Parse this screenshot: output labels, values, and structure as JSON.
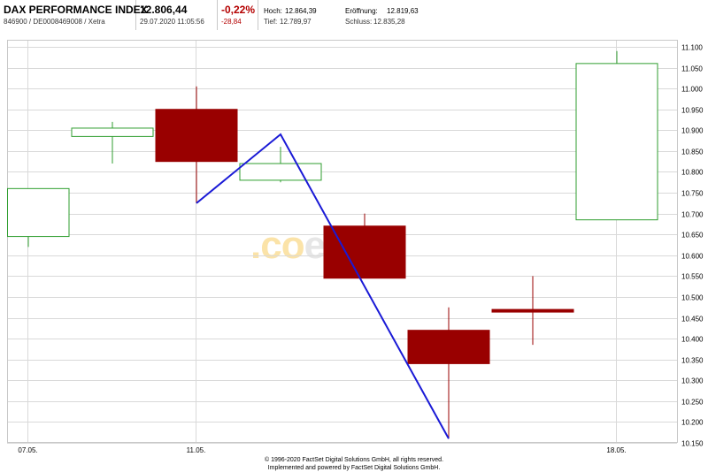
{
  "header": {
    "instrument_name": "DAX PERFORMANCE INDEX",
    "instrument_ids": "846900 / DE0008469008 / Xetra",
    "last_price": "12.806,44",
    "timestamp": "29.07.2020 11:05:56",
    "change_pct": "-0,22%",
    "change_abs": "-28,84",
    "high_label": "Hoch:",
    "high_value": "12.864,39",
    "open_label": "Eröffnung:",
    "open_value": "12.819,63",
    "low_label": "Tief:",
    "low_value": "12.789,97",
    "close_label": "Schluss:",
    "close_value": "12.835,28"
  },
  "watermark": {
    "prefix": ".co",
    "suffix": "ect"
  },
  "footer": {
    "line1": "© 1996-2020 FactSet Digital Solutions GmbH, all rights reserved.",
    "line2": "Implemented and powered by FactSet Digital Solutions GmbH."
  },
  "colors": {
    "up": "#2f9e2f",
    "down": "#990000",
    "line": "#1a1ad6",
    "grid": "#d9d9d9"
  },
  "chart_data": {
    "type": "candlestick",
    "ylim": [
      10150,
      11100
    ],
    "y_ticks": [
      "11.100",
      "11.050",
      "11.000",
      "10.950",
      "10.900",
      "10.850",
      "10.800",
      "10.750",
      "10.700",
      "10.650",
      "10.600",
      "10.550",
      "10.500",
      "10.450",
      "10.400",
      "10.350",
      "10.300",
      "10.250",
      "10.200",
      "10.150"
    ],
    "x_ticks": [
      {
        "label": "07.05.",
        "slot": 0
      },
      {
        "label": "11.05.",
        "slot": 2
      },
      {
        "label": "18.05.",
        "slot": 7
      }
    ],
    "candles": [
      {
        "slot": 0,
        "open": 10645,
        "high": 10760,
        "low": 10620,
        "close": 10760
      },
      {
        "slot": 1,
        "open": 10885,
        "high": 10920,
        "low": 10820,
        "close": 10905
      },
      {
        "slot": 2,
        "open": 10950,
        "high": 11005,
        "low": 10725,
        "close": 10825
      },
      {
        "slot": 3,
        "open": 10780,
        "high": 10860,
        "low": 10775,
        "close": 10820
      },
      {
        "slot": 4,
        "open": 10670,
        "high": 10700,
        "low": 10545,
        "close": 10545
      },
      {
        "slot": 5,
        "open": 10420,
        "high": 10475,
        "low": 10160,
        "close": 10340
      },
      {
        "slot": 6,
        "open": 10470,
        "high": 10550,
        "low": 10385,
        "close": 10467
      },
      {
        "slot": 7,
        "open": 10685,
        "high": 11090,
        "low": 10685,
        "close": 11060
      }
    ],
    "overlay_line": [
      {
        "slot": 2,
        "value": 10725
      },
      {
        "slot": 3,
        "value": 10890
      },
      {
        "slot": 5,
        "value": 10160
      }
    ]
  }
}
